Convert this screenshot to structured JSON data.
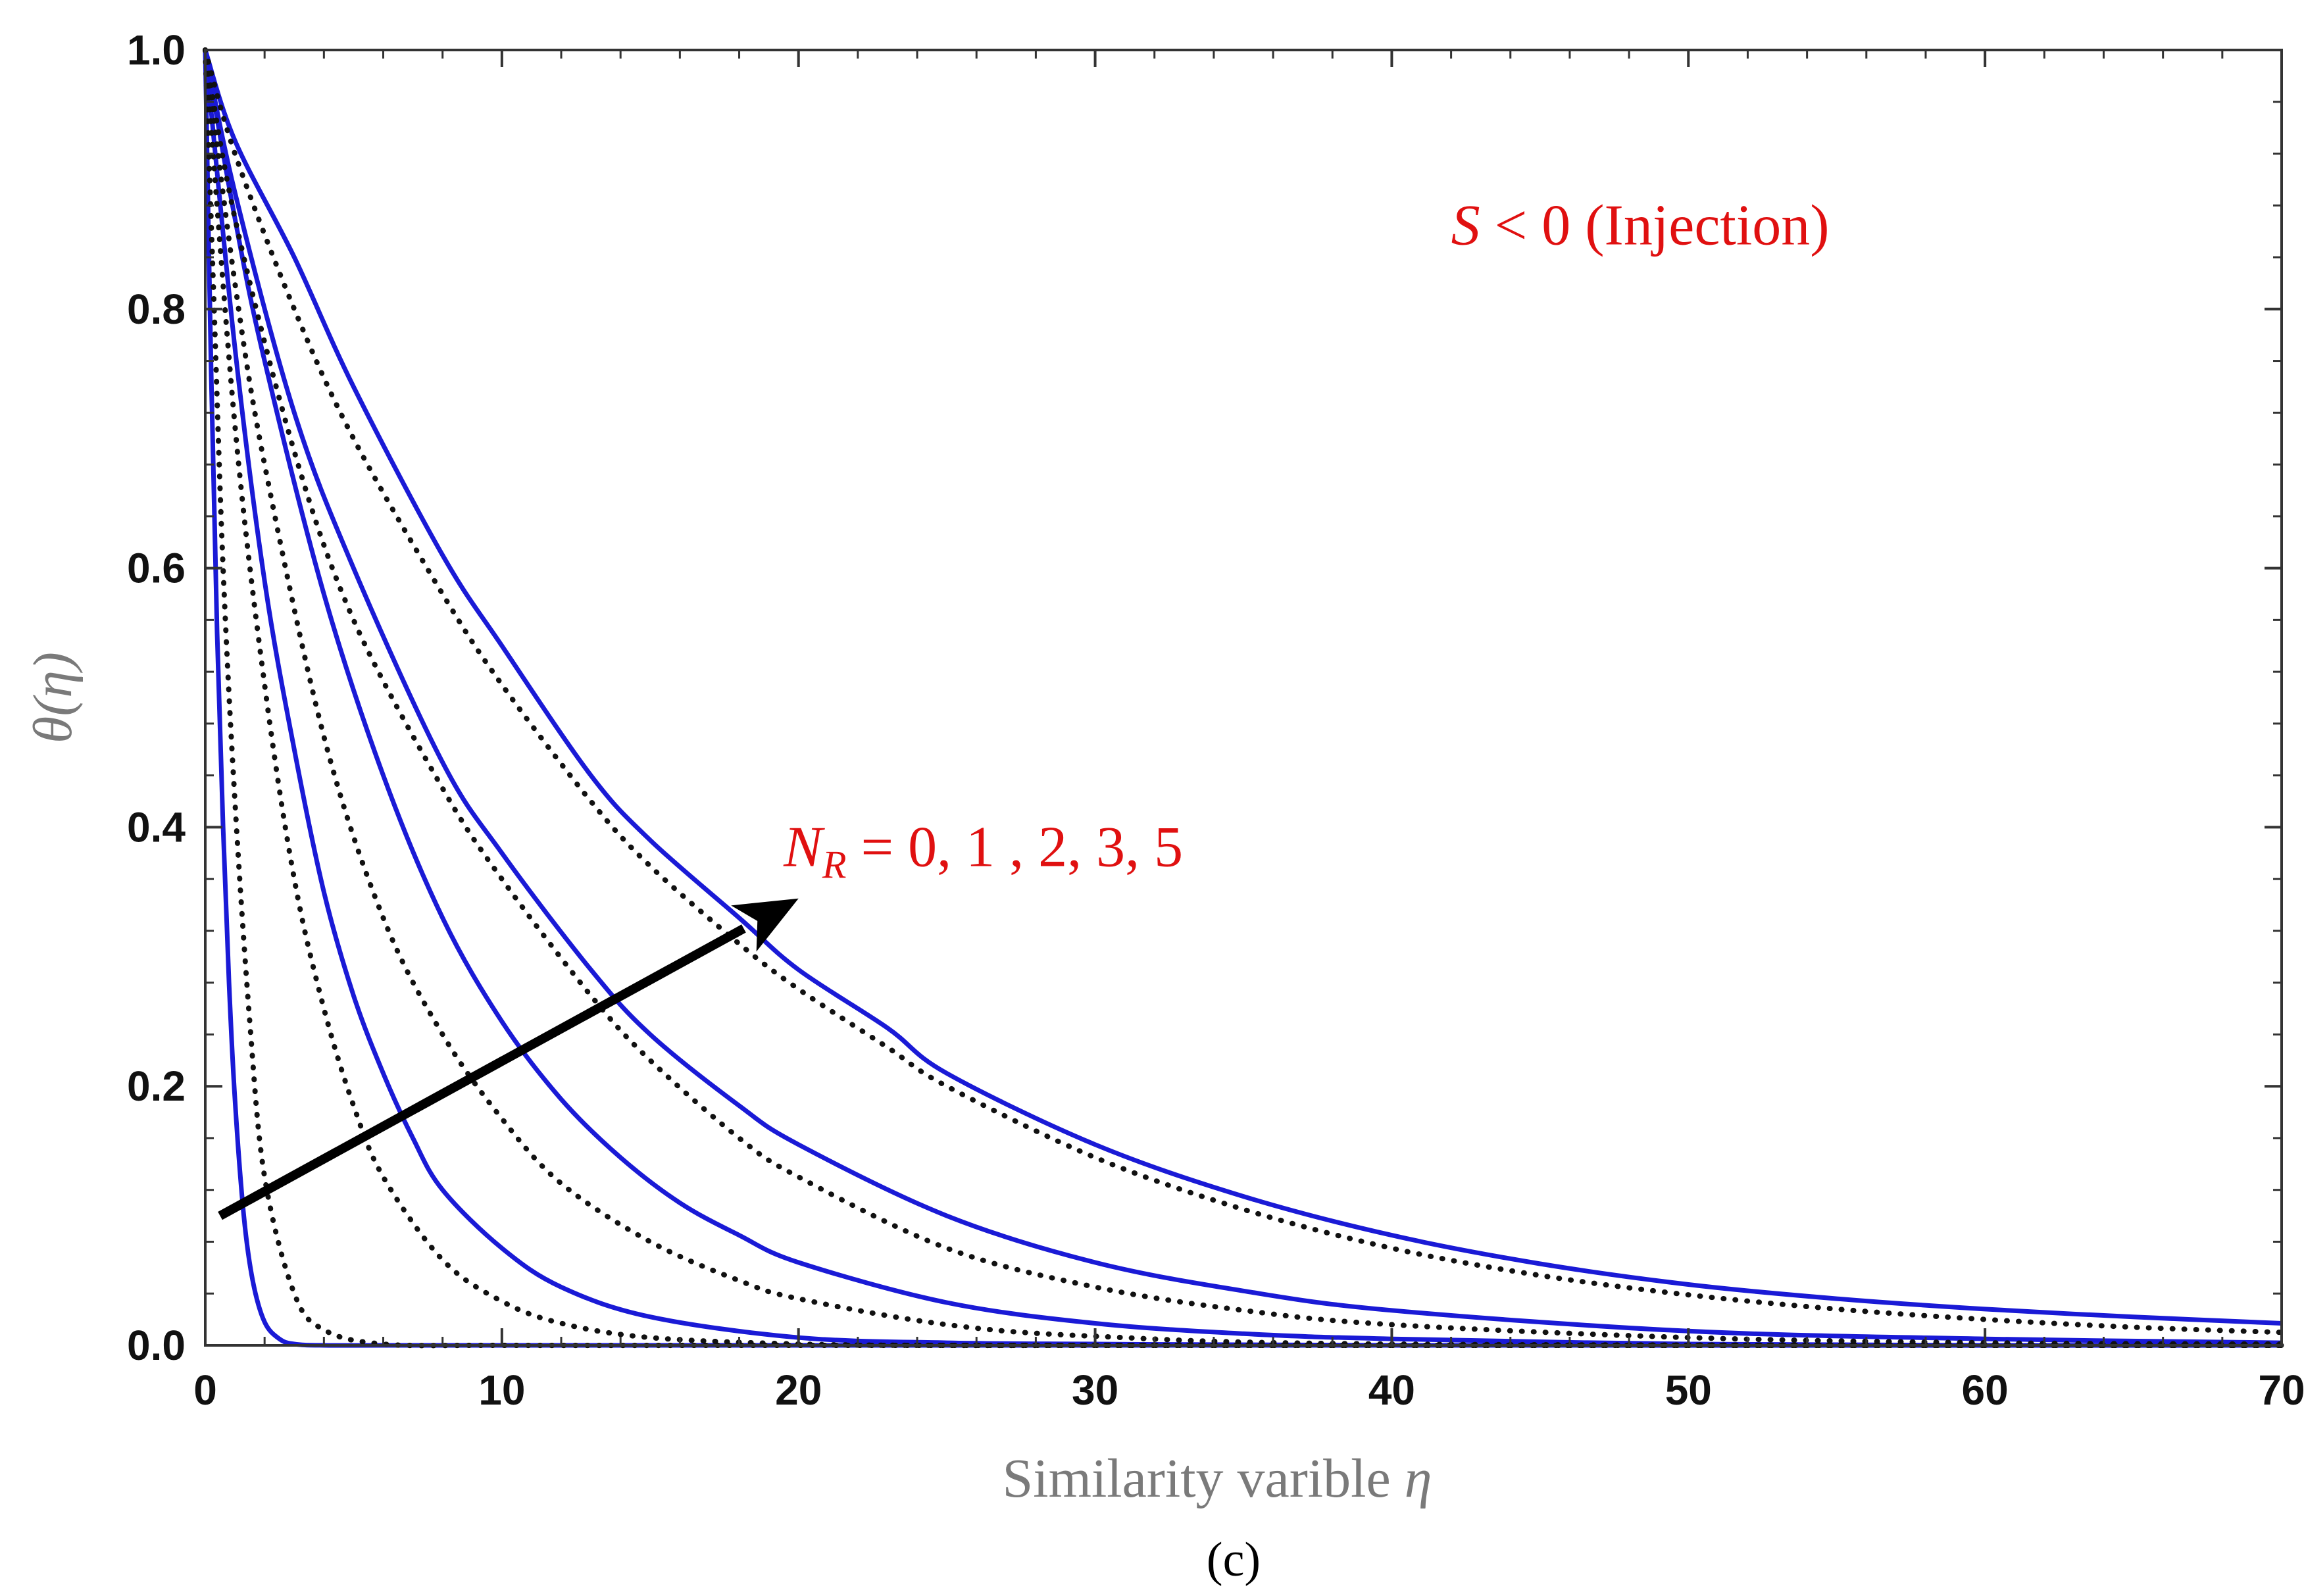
{
  "chart_data": {
    "type": "line",
    "title": "",
    "xlabel": "Similarity varible η",
    "xlabel_text": "Similarity varible ",
    "xlabel_symbol": "η",
    "ylabel": "θ(η)",
    "xlim": [
      0,
      70
    ],
    "ylim": [
      0,
      1.0
    ],
    "xticks": [
      0,
      10,
      20,
      30,
      40,
      50,
      60,
      70
    ],
    "xtick_labels": [
      "0",
      "10",
      "20",
      "30",
      "40",
      "50",
      "60",
      "70"
    ],
    "yticks": [
      0.0,
      0.2,
      0.4,
      0.6,
      0.8,
      1.0
    ],
    "ytick_labels": [
      "0.0",
      "0.2",
      "0.4",
      "0.6",
      "0.8",
      "1.0"
    ],
    "grid": false,
    "series": [
      {
        "name": "Solid N_R = 0",
        "style": "solid",
        "color": "#1a1ad6",
        "x": [
          0,
          0.2,
          0.4,
          0.6,
          0.8,
          1.0,
          1.3,
          1.6,
          2.0,
          2.5,
          3.0,
          4.0,
          6.0,
          10,
          20,
          40,
          70
        ],
        "y": [
          1.0,
          0.75,
          0.55,
          0.4,
          0.28,
          0.19,
          0.1,
          0.05,
          0.018,
          0.005,
          0.001,
          0,
          0,
          0,
          0,
          0,
          0
        ]
      },
      {
        "name": "Solid N_R = 1",
        "style": "solid",
        "color": "#1a1ad6",
        "x": [
          0,
          1,
          2,
          3,
          4,
          5,
          6,
          7,
          8,
          10,
          12,
          15,
          20,
          25,
          30,
          40,
          70
        ],
        "y": [
          1.0,
          0.77,
          0.59,
          0.46,
          0.35,
          0.27,
          0.21,
          0.16,
          0.12,
          0.075,
          0.045,
          0.022,
          0.006,
          0.002,
          0.001,
          0,
          0
        ]
      },
      {
        "name": "Solid N_R = 2",
        "style": "solid",
        "color": "#1a1ad6",
        "x": [
          0,
          1,
          2,
          4,
          6,
          8,
          10,
          12,
          14,
          16,
          18,
          20,
          25,
          30,
          35,
          40,
          50,
          60,
          70
        ],
        "y": [
          1.0,
          0.87,
          0.76,
          0.58,
          0.44,
          0.33,
          0.25,
          0.19,
          0.145,
          0.11,
          0.085,
          0.064,
          0.033,
          0.017,
          0.009,
          0.005,
          0.001,
          0,
          0
        ]
      },
      {
        "name": "Solid N_R = 3",
        "style": "solid",
        "color": "#1a1ad6",
        "x": [
          0,
          1,
          3,
          5,
          8,
          10,
          13,
          15,
          18,
          20,
          25,
          30,
          35,
          40,
          50,
          60,
          70
        ],
        "y": [
          1.0,
          0.89,
          0.72,
          0.6,
          0.45,
          0.38,
          0.29,
          0.24,
          0.185,
          0.155,
          0.1,
          0.064,
          0.042,
          0.027,
          0.011,
          0.005,
          0.002
        ]
      },
      {
        "name": "Solid N_R = 5",
        "style": "solid",
        "color": "#1a1ad6",
        "x": [
          0,
          1,
          3,
          5,
          8,
          10,
          13,
          15,
          18,
          20,
          23,
          25,
          30,
          35,
          40,
          45,
          50,
          55,
          60,
          65,
          70
        ],
        "y": [
          1.0,
          0.93,
          0.84,
          0.74,
          0.61,
          0.54,
          0.44,
          0.39,
          0.33,
          0.29,
          0.245,
          0.21,
          0.155,
          0.115,
          0.085,
          0.063,
          0.047,
          0.036,
          0.028,
          0.022,
          0.017
        ]
      },
      {
        "name": "Dotted N_R = 0",
        "style": "dotted",
        "color": "#111111",
        "x": [
          0,
          0.3,
          0.6,
          1.0,
          1.5,
          2.0,
          3.0,
          4.0,
          6.0,
          10,
          20,
          40,
          70
        ],
        "y": [
          1.0,
          0.8,
          0.6,
          0.42,
          0.25,
          0.13,
          0.04,
          0.012,
          0.001,
          0,
          0,
          0,
          0
        ]
      },
      {
        "name": "Dotted N_R = 1",
        "style": "dotted",
        "color": "#111111",
        "x": [
          0,
          1,
          2,
          3,
          4,
          5,
          6,
          8,
          10,
          12,
          15,
          20,
          25,
          30,
          40,
          70
        ],
        "y": [
          1.0,
          0.71,
          0.51,
          0.36,
          0.26,
          0.185,
          0.13,
          0.066,
          0.034,
          0.017,
          0.006,
          0.001,
          0,
          0,
          0,
          0
        ]
      },
      {
        "name": "Dotted N_R = 2",
        "style": "dotted",
        "color": "#111111",
        "x": [
          0,
          1,
          2,
          4,
          6,
          8,
          10,
          12,
          15,
          18,
          20,
          25,
          30,
          40,
          70
        ],
        "y": [
          1.0,
          0.82,
          0.68,
          0.47,
          0.33,
          0.24,
          0.175,
          0.125,
          0.08,
          0.05,
          0.036,
          0.016,
          0.007,
          0.001,
          0
        ]
      },
      {
        "name": "Dotted N_R = 3",
        "style": "dotted",
        "color": "#111111",
        "x": [
          0,
          1,
          3,
          5,
          8,
          10,
          13,
          15,
          18,
          20,
          25,
          30,
          35,
          40,
          50,
          60,
          70
        ],
        "y": [
          1.0,
          0.87,
          0.69,
          0.56,
          0.43,
          0.36,
          0.27,
          0.22,
          0.16,
          0.13,
          0.075,
          0.045,
          0.027,
          0.016,
          0.006,
          0.002,
          0.001
        ]
      },
      {
        "name": "Dotted N_R = 5",
        "style": "dotted",
        "color": "#111111",
        "x": [
          0,
          1,
          3,
          5,
          8,
          10,
          13,
          15,
          18,
          20,
          23,
          25,
          30,
          35,
          40,
          45,
          50,
          55,
          60,
          65,
          70
        ],
        "y": [
          1.0,
          0.92,
          0.8,
          0.7,
          0.58,
          0.51,
          0.42,
          0.37,
          0.31,
          0.275,
          0.23,
          0.2,
          0.145,
          0.105,
          0.075,
          0.054,
          0.039,
          0.028,
          0.02,
          0.014,
          0.01
        ]
      }
    ],
    "arrow": {
      "from": [
        0.5,
        0.1
      ],
      "to": [
        20,
        0.345
      ]
    },
    "annotations": [
      {
        "id": "injection",
        "text_italic": "S",
        "text_rest": " < 0 (Injection)",
        "color": "#e01010",
        "x": 42,
        "y": 0.85
      },
      {
        "id": "nr",
        "text_italic": "N",
        "sub": "R",
        "text_rest": " = 0, 1 , 2,  3, 5",
        "color": "#e01010",
        "x": 19.5,
        "y": 0.37
      }
    ],
    "panel_label": "(c)"
  }
}
